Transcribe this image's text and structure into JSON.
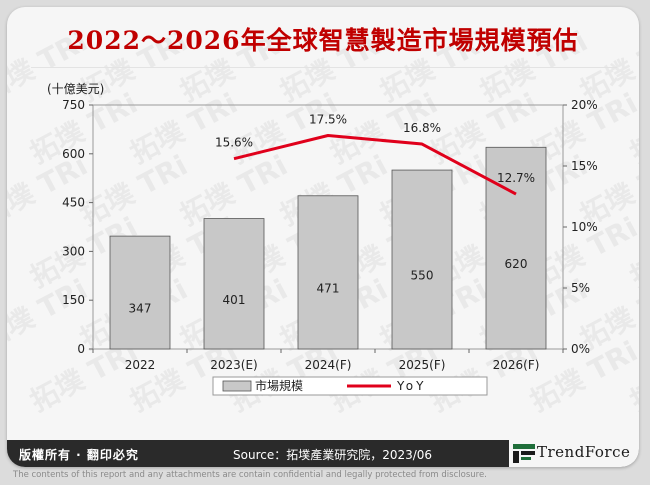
{
  "title": "2022～2026年全球智慧製造市場規模預估",
  "footer": {
    "rights": "版權所有 · 翻印必究",
    "source": "Source：拓墣產業研究院，2023/06",
    "logo_text": "TrendForce",
    "disclaimer": "The contents of this report and any attachments are contain confidential and legally protected from disclosure."
  },
  "watermark": {
    "text": "拓墣 TRi"
  },
  "colors": {
    "title": "#c00000",
    "bar_fill": "#c8c8c8",
    "bar_stroke": "#555555",
    "line": "#e0001b",
    "footer_bg": "#2a2a2a"
  },
  "chart_data": {
    "type": "bar",
    "categories": [
      "2022",
      "2023(E)",
      "2024(F)",
      "2025(F)",
      "2026(F)"
    ],
    "y_unit_label": "(十億美元)",
    "ylim": [
      0,
      750
    ],
    "yticks": [
      0,
      150,
      300,
      450,
      600,
      750
    ],
    "y2lim": [
      0,
      20
    ],
    "y2ticks": [
      "0%",
      "5%",
      "10%",
      "15%",
      "20%"
    ],
    "grid": false,
    "legend_position": "bottom",
    "series": [
      {
        "name": "市場規模",
        "type": "bar",
        "values": [
          347,
          401,
          471,
          550,
          620
        ],
        "labels": [
          "347",
          "401",
          "471",
          "550",
          "620"
        ]
      },
      {
        "name": "YoY",
        "type": "line",
        "axis": "right",
        "values": [
          null,
          15.6,
          17.5,
          16.8,
          12.7
        ],
        "labels": [
          "",
          "15.6%",
          "17.5%",
          "16.8%",
          "12.7%"
        ]
      }
    ]
  }
}
